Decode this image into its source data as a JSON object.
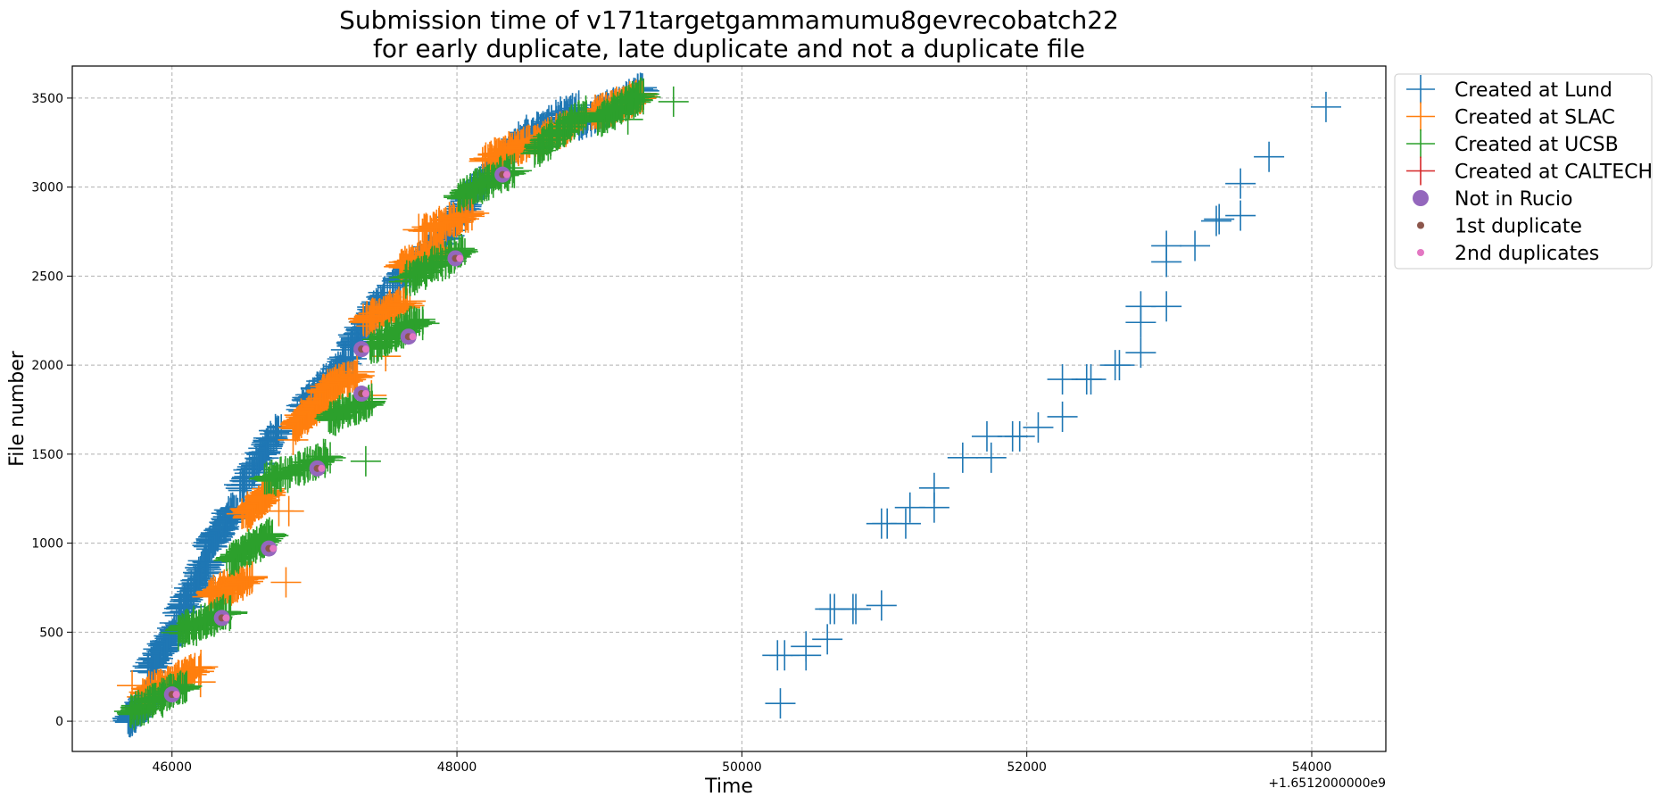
{
  "chart_data": {
    "type": "scatter",
    "title_line1": "Submission time of v171targetgammamumu8gevrecobatch22",
    "title_line2": "for early duplicate, late duplicate and not a duplicate file",
    "xlabel": "Time",
    "ylabel": "File number",
    "x_offset_label": "+1.6512000000e9",
    "xlim": [
      45300,
      54520
    ],
    "ylim": [
      -170,
      3680
    ],
    "x_ticks": [
      46000,
      48000,
      50000,
      52000,
      54000
    ],
    "x_tick_labels": [
      "46000",
      "48000",
      "50000",
      "52000",
      "54000"
    ],
    "y_ticks": [
      0,
      500,
      1000,
      1500,
      2000,
      2500,
      3000,
      3500
    ],
    "y_tick_labels": [
      "0",
      "500",
      "1000",
      "1500",
      "2000",
      "2500",
      "3000",
      "3500"
    ],
    "grid": true,
    "legend_position": "upper right, outside plot",
    "series": [
      {
        "name": "Created at Lund",
        "color": "#1f77b4",
        "marker": "plus",
        "dense_segments": [
          [
            45700,
            0,
            45850,
            150
          ],
          [
            45830,
            280,
            46050,
            550
          ],
          [
            46050,
            600,
            46250,
            900
          ],
          [
            46250,
            980,
            46450,
            1200
          ],
          [
            46480,
            1300,
            46750,
            1650
          ],
          [
            46900,
            1750,
            47250,
            2050
          ],
          [
            47250,
            2100,
            47500,
            2400
          ],
          [
            47550,
            2450,
            47950,
            2750
          ],
          [
            47950,
            2800,
            48350,
            3200
          ],
          [
            48400,
            3250,
            48850,
            3450
          ],
          [
            48850,
            3350,
            49300,
            3550
          ]
        ],
        "points": [
          [
            50270,
            100
          ],
          [
            50250,
            370
          ],
          [
            50300,
            370
          ],
          [
            50450,
            370
          ],
          [
            50450,
            420
          ],
          [
            50600,
            460
          ],
          [
            50620,
            630
          ],
          [
            50650,
            630
          ],
          [
            50780,
            630
          ],
          [
            50800,
            630
          ],
          [
            50980,
            650
          ],
          [
            50980,
            1110
          ],
          [
            51020,
            1110
          ],
          [
            51150,
            1110
          ],
          [
            51180,
            1200
          ],
          [
            51350,
            1200
          ],
          [
            51350,
            1310
          ],
          [
            51550,
            1480
          ],
          [
            51750,
            1480
          ],
          [
            51720,
            1600
          ],
          [
            51900,
            1600
          ],
          [
            51950,
            1600
          ],
          [
            52080,
            1650
          ],
          [
            52250,
            1710
          ],
          [
            52250,
            1920
          ],
          [
            52420,
            1920
          ],
          [
            52450,
            1920
          ],
          [
            52620,
            2000
          ],
          [
            52650,
            2000
          ],
          [
            52800,
            2070
          ],
          [
            52800,
            2240
          ],
          [
            52800,
            2330
          ],
          [
            52980,
            2330
          ],
          [
            52980,
            2580
          ],
          [
            52980,
            2670
          ],
          [
            53180,
            2670
          ],
          [
            53330,
            2810
          ],
          [
            53350,
            2820
          ],
          [
            53500,
            2840
          ],
          [
            53500,
            3020
          ],
          [
            53700,
            3170
          ],
          [
            54100,
            3450
          ]
        ]
      },
      {
        "name": "Created at SLAC",
        "color": "#ff7f0e",
        "marker": "plus",
        "dense_segments": [
          [
            45800,
            150,
            46200,
            300
          ],
          [
            46250,
            700,
            46550,
            800
          ],
          [
            46500,
            1150,
            46700,
            1300
          ],
          [
            46850,
            1650,
            47050,
            1800
          ],
          [
            47050,
            1850,
            47300,
            1950
          ],
          [
            47350,
            2250,
            47650,
            2350
          ],
          [
            47600,
            2550,
            47900,
            2650
          ],
          [
            47750,
            2750,
            48100,
            2850
          ],
          [
            48200,
            3150,
            48500,
            3250
          ],
          [
            48550,
            3250,
            48800,
            3350
          ],
          [
            48950,
            3400,
            49300,
            3520
          ]
        ],
        "points": [
          [
            45720,
            200
          ],
          [
            46200,
            220
          ],
          [
            46800,
            780
          ],
          [
            46820,
            1180
          ],
          [
            46750,
            1180
          ],
          [
            46850,
            1580
          ],
          [
            47400,
            1830
          ],
          [
            47500,
            2050
          ],
          [
            47400,
            2220
          ]
        ]
      },
      {
        "name": "Created at UCSB",
        "color": "#2ca02c",
        "marker": "plus",
        "dense_segments": [
          [
            45700,
            50,
            46100,
            200
          ],
          [
            46050,
            500,
            46400,
            620
          ],
          [
            46400,
            900,
            46700,
            1050
          ],
          [
            46650,
            1350,
            47100,
            1480
          ],
          [
            47100,
            1700,
            47400,
            1800
          ],
          [
            47400,
            2100,
            47750,
            2250
          ],
          [
            47650,
            2480,
            48050,
            2650
          ],
          [
            48000,
            2950,
            48400,
            3100
          ],
          [
            48550,
            3200,
            48900,
            3420
          ],
          [
            49000,
            3380,
            49300,
            3520
          ]
        ],
        "points": [
          [
            47360,
            1460
          ],
          [
            49520,
            3480
          ],
          [
            49200,
            3380
          ]
        ]
      },
      {
        "name": "Created at CALTECH",
        "color": "#d62728",
        "marker": "plus",
        "dense_segments": [],
        "points": []
      },
      {
        "name": "Not in Rucio",
        "color": "#9467bd",
        "marker": "circle",
        "points": [
          [
            46000,
            150
          ],
          [
            46350,
            580
          ],
          [
            46680,
            970
          ],
          [
            47020,
            1420
          ],
          [
            47330,
            1840
          ],
          [
            47330,
            2090
          ],
          [
            47660,
            2160
          ],
          [
            47990,
            2600
          ],
          [
            48320,
            3070
          ]
        ]
      },
      {
        "name": "1st duplicate",
        "color": "#8c564b",
        "marker": "dot",
        "points": [
          [
            46000,
            150
          ],
          [
            46350,
            580
          ],
          [
            46680,
            970
          ],
          [
            47020,
            1420
          ],
          [
            47330,
            1840
          ],
          [
            47330,
            2090
          ],
          [
            47660,
            2160
          ],
          [
            47990,
            2600
          ],
          [
            48320,
            3070
          ]
        ]
      },
      {
        "name": "2nd duplicates",
        "color": "#e377c2",
        "marker": "dot",
        "points": [
          [
            46030,
            150
          ],
          [
            46380,
            580
          ],
          [
            46710,
            970
          ],
          [
            47050,
            1420
          ],
          [
            47360,
            1840
          ],
          [
            47360,
            2090
          ],
          [
            47690,
            2160
          ],
          [
            48020,
            2600
          ],
          [
            48350,
            3070
          ]
        ]
      }
    ]
  }
}
